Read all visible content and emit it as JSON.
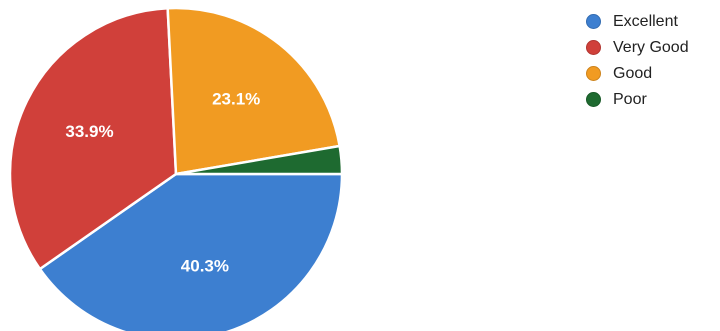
{
  "chart_data": {
    "type": "pie",
    "title": "",
    "slices": [
      {
        "name": "Excellent",
        "value": 40.3,
        "label": "40.3%",
        "color": "#3d7fd0"
      },
      {
        "name": "Very Good",
        "value": 33.9,
        "label": "33.9%",
        "color": "#d0403a"
      },
      {
        "name": "Good",
        "value": 23.1,
        "label": "23.1%",
        "color": "#f19b22"
      },
      {
        "name": "Poor",
        "value": 2.7,
        "label": "",
        "color": "#1e6a30"
      }
    ],
    "legend": {
      "placement": "top-right",
      "entries": [
        "Excellent",
        "Very Good",
        "Good",
        "Poor"
      ]
    }
  }
}
